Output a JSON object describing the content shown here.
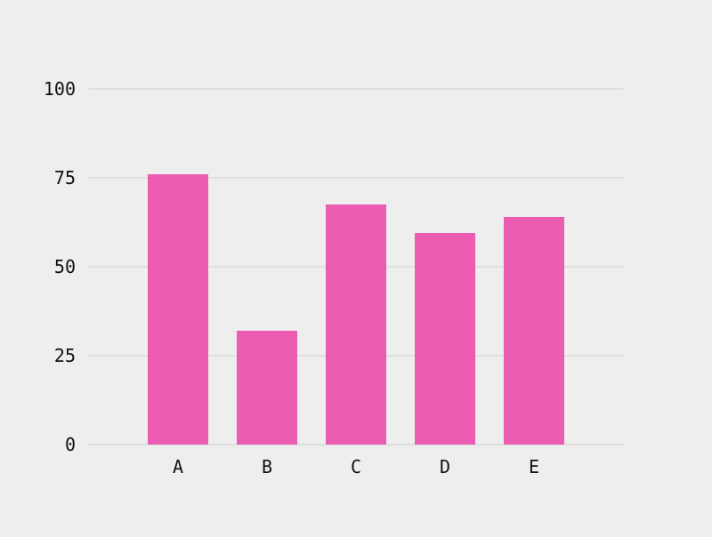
{
  "chart_data": {
    "type": "bar",
    "categories": [
      "A",
      "B",
      "C",
      "D",
      "E"
    ],
    "values": [
      76,
      32,
      67.5,
      59.5,
      64
    ],
    "title": "",
    "xlabel": "",
    "ylabel": "",
    "ylim": [
      0,
      100
    ],
    "yticks": [
      0,
      25,
      50,
      75,
      100
    ],
    "grid": true,
    "bar_color": "#ec4fac",
    "background": "#eeeeee"
  }
}
